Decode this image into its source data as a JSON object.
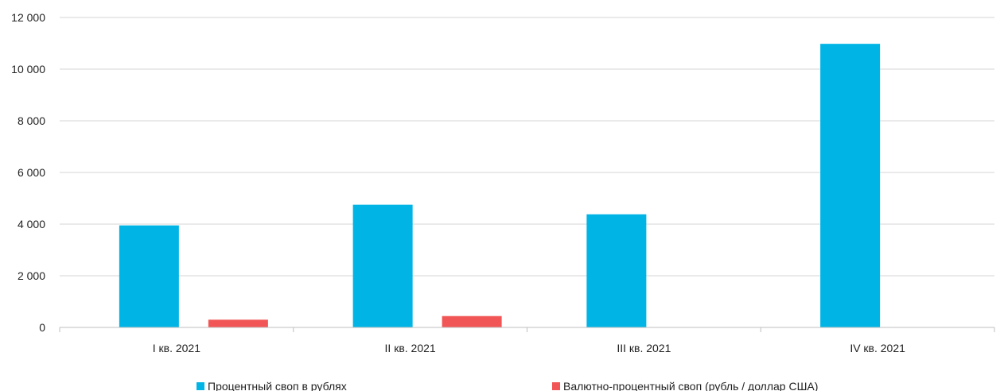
{
  "chart_data": {
    "type": "bar",
    "title": "",
    "xlabel": "",
    "ylabel": "",
    "ylim": [
      0,
      12000
    ],
    "y_ticks": [
      0,
      2000,
      4000,
      6000,
      8000,
      10000,
      12000
    ],
    "y_tick_labels": [
      "0",
      "2 000",
      "4 000",
      "6 000",
      "8 000",
      "10 000",
      "12 000"
    ],
    "categories": [
      "I кв. 2021",
      "II кв. 2021",
      "III кв. 2021",
      "IV кв. 2021"
    ],
    "series": [
      {
        "name": "Процентный своп в рублях",
        "color": "#00B5E6",
        "values": [
          3950,
          4750,
          4380,
          10980
        ]
      },
      {
        "name": "Валютно-процентный своп (рубль / доллар США)",
        "color": "#F25555",
        "values": [
          300,
          440,
          0,
          0
        ]
      }
    ],
    "grid": true,
    "legend_position": "bottom"
  }
}
